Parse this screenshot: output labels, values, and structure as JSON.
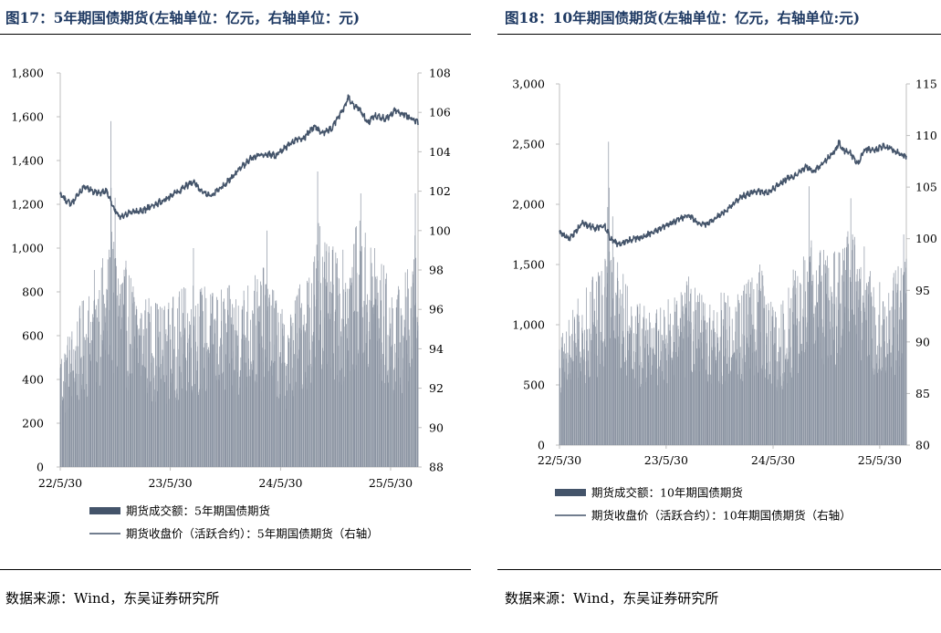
{
  "source_text": "数据来源：Wind，东吴证券研究所",
  "chart_data": [
    {
      "type": "bar+line",
      "title": "图17：5年期国债期货(左轴单位：亿元，右轴单位：元)",
      "xlabel": "",
      "ylabel": "",
      "categories": [
        "22/5/30",
        "23/5/30",
        "24/5/30",
        "25/5/30"
      ],
      "x_range": [
        "2022-05-30",
        "2025-08-29"
      ],
      "ylim_left": [
        0,
        1800
      ],
      "yticks_left": [
        "0",
        "200",
        "400",
        "600",
        "800",
        "1,000",
        "1,200",
        "1,400",
        "1,600",
        "1,800"
      ],
      "ylim_right": [
        88,
        108
      ],
      "yticks_right": [
        "88",
        "90",
        "92",
        "94",
        "96",
        "98",
        "100",
        "102",
        "104",
        "106",
        "108"
      ],
      "grid": false,
      "legend_position": "bottom",
      "series": [
        {
          "name": "期货成交额：5年期国债期货",
          "axis": "left",
          "kind": "bar",
          "color": "#8c95a3",
          "level_anchors": [
            [
              "2022-05-30",
              380
            ],
            [
              "2022-07-15",
              470
            ],
            [
              "2022-09-15",
              600
            ],
            [
              "2022-11-15",
              720
            ],
            [
              "2022-12-20",
              680
            ],
            [
              "2023-02-15",
              560
            ],
            [
              "2023-05-15",
              520
            ],
            [
              "2023-08-15",
              600
            ],
            [
              "2023-10-15",
              560
            ],
            [
              "2024-01-15",
              580
            ],
            [
              "2024-04-15",
              640
            ],
            [
              "2024-06-15",
              470
            ],
            [
              "2024-08-15",
              620
            ],
            [
              "2024-10-01",
              720
            ],
            [
              "2024-12-20",
              680
            ],
            [
              "2025-02-15",
              780
            ],
            [
              "2025-04-10",
              700
            ],
            [
              "2025-06-15",
              560
            ],
            [
              "2025-08-29",
              700
            ]
          ],
          "spikes": [
            [
              "2022-11-14",
              1580
            ],
            [
              "2022-11-28",
              1230
            ],
            [
              "2022-09-20",
              900
            ],
            [
              "2023-08-15",
              1000
            ],
            [
              "2024-04-15",
              1080
            ],
            [
              "2024-09-30",
              1350
            ],
            [
              "2024-10-08",
              1100
            ],
            [
              "2025-02-20",
              1250
            ],
            [
              "2025-04-07",
              1000
            ],
            [
              "2025-08-20",
              1250
            ]
          ]
        },
        {
          "name": "期货收盘价（活跃合约）：5年期国债期货（右轴）",
          "axis": "right",
          "kind": "line",
          "color": "#44546a",
          "points": [
            [
              "2022-05-30",
              101.8
            ],
            [
              "2022-07-05",
              101.3
            ],
            [
              "2022-08-15",
              102.2
            ],
            [
              "2022-10-01",
              101.9
            ],
            [
              "2022-11-01",
              102.0
            ],
            [
              "2022-11-20",
              101.2
            ],
            [
              "2022-12-15",
              100.7
            ],
            [
              "2023-01-15",
              100.9
            ],
            [
              "2023-03-01",
              101.0
            ],
            [
              "2023-05-15",
              101.6
            ],
            [
              "2023-06-15",
              101.9
            ],
            [
              "2023-08-15",
              102.5
            ],
            [
              "2023-09-15",
              101.9
            ],
            [
              "2023-10-15",
              101.8
            ],
            [
              "2023-12-15",
              102.6
            ],
            [
              "2024-02-15",
              103.6
            ],
            [
              "2024-04-01",
              103.9
            ],
            [
              "2024-05-15",
              103.8
            ],
            [
              "2024-07-15",
              104.6
            ],
            [
              "2024-08-15",
              104.7
            ],
            [
              "2024-09-20",
              105.3
            ],
            [
              "2024-10-15",
              104.9
            ],
            [
              "2024-11-15",
              105.2
            ],
            [
              "2024-12-31",
              106.3
            ],
            [
              "2025-01-10",
              106.8
            ],
            [
              "2025-01-25",
              106.4
            ],
            [
              "2025-02-15",
              106.2
            ],
            [
              "2025-03-15",
              105.5
            ],
            [
              "2025-04-10",
              105.8
            ],
            [
              "2025-05-15",
              105.7
            ],
            [
              "2025-06-15",
              106.1
            ],
            [
              "2025-07-15",
              105.9
            ],
            [
              "2025-08-29",
              105.5
            ]
          ]
        }
      ]
    },
    {
      "type": "bar+line",
      "title": "图18：10年期国债期货(左轴单位：亿元，右轴单位:元)",
      "xlabel": "",
      "ylabel": "",
      "categories": [
        "22/5/30",
        "23/5/30",
        "24/5/30",
        "25/5/30"
      ],
      "x_range": [
        "2022-05-30",
        "2025-08-29"
      ],
      "ylim_left": [
        0,
        3000
      ],
      "yticks_left": [
        "0",
        "500",
        "1,000",
        "1,500",
        "2,000",
        "2,500",
        "3,000"
      ],
      "ylim_right": [
        80,
        115
      ],
      "yticks_right": [
        "80",
        "85",
        "90",
        "95",
        "100",
        "105",
        "110",
        "115"
      ],
      "grid": false,
      "legend_position": "bottom",
      "series": [
        {
          "name": "期货成交额：10年期国债期货",
          "axis": "left",
          "kind": "bar",
          "color": "#8c95a3",
          "level_anchors": [
            [
              "2022-05-30",
              650
            ],
            [
              "2022-07-15",
              800
            ],
            [
              "2022-09-15",
              950
            ],
            [
              "2022-11-15",
              1150
            ],
            [
              "2022-12-20",
              1050
            ],
            [
              "2023-02-15",
              850
            ],
            [
              "2023-05-15",
              800
            ],
            [
              "2023-08-15",
              950
            ],
            [
              "2023-10-15",
              850
            ],
            [
              "2024-01-15",
              900
            ],
            [
              "2024-04-15",
              1050
            ],
            [
              "2024-06-15",
              750
            ],
            [
              "2024-08-15",
              1050
            ],
            [
              "2024-10-01",
              1150
            ],
            [
              "2024-12-20",
              1100
            ],
            [
              "2025-02-15",
              1250
            ],
            [
              "2025-04-10",
              1100
            ],
            [
              "2025-06-15",
              900
            ],
            [
              "2025-08-29",
              1150
            ]
          ],
          "spikes": [
            [
              "2022-11-14",
              2520
            ],
            [
              "2022-11-28",
              1900
            ],
            [
              "2022-09-20",
              1400
            ],
            [
              "2023-08-15",
              1400
            ],
            [
              "2024-04-15",
              1500
            ],
            [
              "2024-09-30",
              2150
            ],
            [
              "2024-10-08",
              1700
            ],
            [
              "2025-02-20",
              2050
            ],
            [
              "2025-04-07",
              1650
            ],
            [
              "2025-08-20",
              1750
            ]
          ]
        },
        {
          "name": "期货收盘价（活跃合约）：10年期国债期货（右轴）",
          "axis": "right",
          "kind": "line",
          "color": "#44546a",
          "points": [
            [
              "2022-05-30",
              100.6
            ],
            [
              "2022-07-05",
              100.0
            ],
            [
              "2022-08-15",
              101.5
            ],
            [
              "2022-10-01",
              101.0
            ],
            [
              "2022-11-01",
              101.3
            ],
            [
              "2022-11-20",
              100.0
            ],
            [
              "2022-12-15",
              99.5
            ],
            [
              "2023-01-15",
              99.8
            ],
            [
              "2023-03-01",
              100.1
            ],
            [
              "2023-05-15",
              101.0
            ],
            [
              "2023-06-15",
              101.5
            ],
            [
              "2023-08-15",
              102.3
            ],
            [
              "2023-09-15",
              101.5
            ],
            [
              "2023-10-15",
              101.4
            ],
            [
              "2023-12-15",
              102.6
            ],
            [
              "2024-02-15",
              104.1
            ],
            [
              "2024-04-01",
              104.6
            ],
            [
              "2024-05-15",
              104.5
            ],
            [
              "2024-07-15",
              105.8
            ],
            [
              "2024-08-15",
              106.1
            ],
            [
              "2024-09-20",
              107.0
            ],
            [
              "2024-10-15",
              106.5
            ],
            [
              "2024-11-15",
              107.2
            ],
            [
              "2024-12-31",
              108.7
            ],
            [
              "2025-01-10",
              109.3
            ],
            [
              "2025-01-25",
              108.6
            ],
            [
              "2025-02-15",
              108.4
            ],
            [
              "2025-03-15",
              107.2
            ],
            [
              "2025-04-10",
              108.7
            ],
            [
              "2025-05-15",
              108.6
            ],
            [
              "2025-06-15",
              109.0
            ],
            [
              "2025-07-15",
              108.6
            ],
            [
              "2025-08-29",
              107.9
            ]
          ]
        }
      ]
    }
  ]
}
